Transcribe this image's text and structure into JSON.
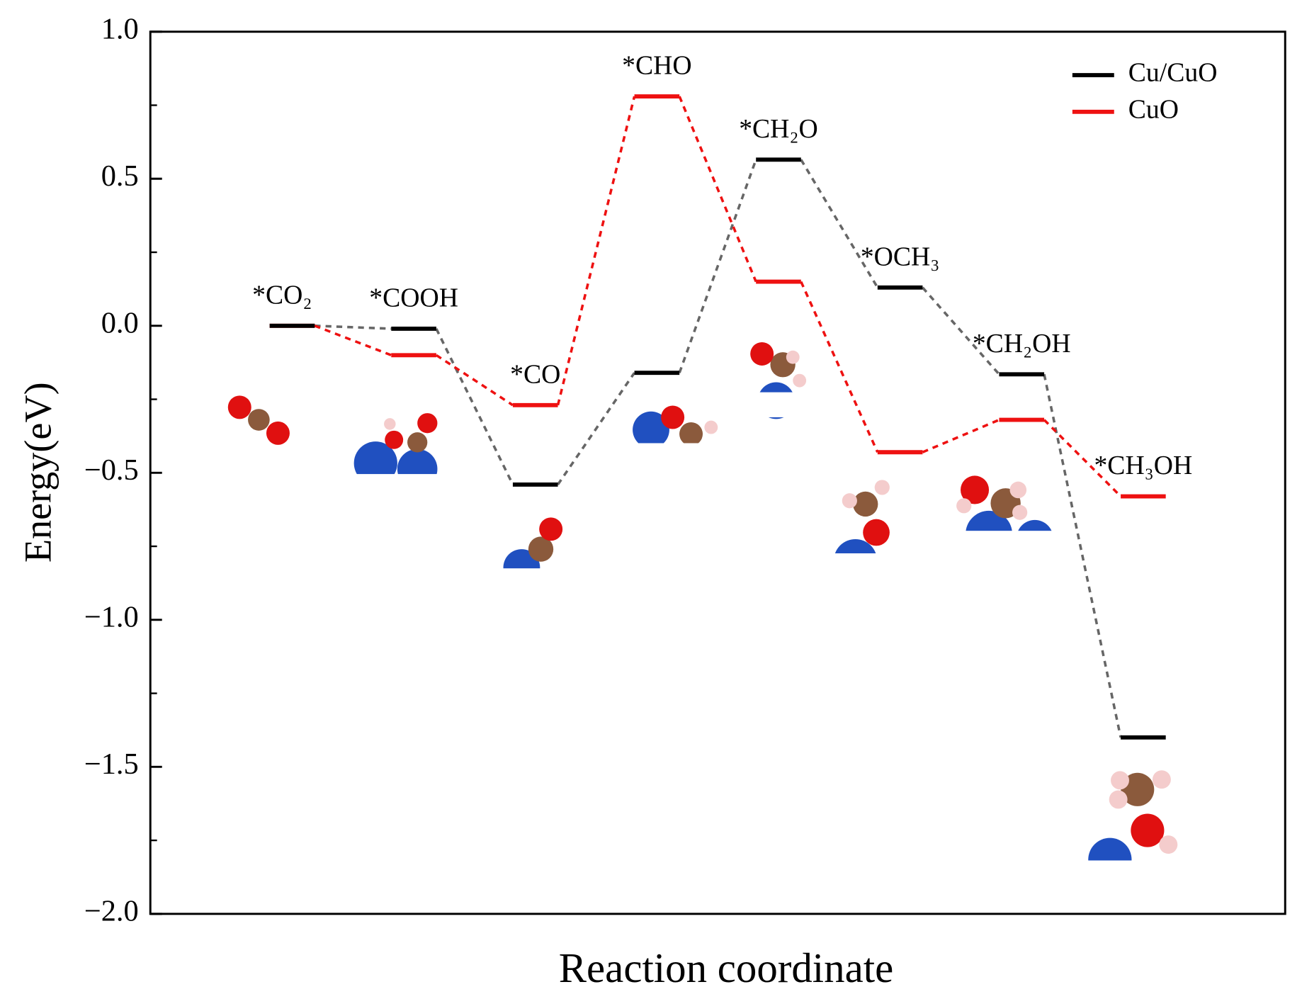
{
  "chart_data": {
    "type": "energy_profile",
    "xlabel": "Reaction coordinate",
    "ylabel": "Energy(eV)",
    "categories": [
      "*CO₂",
      "*COOH",
      "*CO",
      "*CHO",
      "*CH₂O",
      "*OCH₃",
      "*CH₂OH",
      "*CH₃OH"
    ],
    "series": [
      {
        "name": "Cu/CuO",
        "color": "#000000",
        "values": [
          0,
          -0.01,
          -0.54,
          -0.16,
          0.565,
          0.13,
          -0.165,
          -1.4
        ]
      },
      {
        "name": "CuO",
        "color": "#ee1111",
        "values": [
          0,
          -0.1,
          -0.27,
          0.78,
          0.15,
          -0.43,
          -0.32,
          -0.58
        ]
      }
    ],
    "ylim": [
      -2.0,
      1.0
    ],
    "yticks": [
      {
        "value": 1.0,
        "label": "1.0"
      },
      0.5,
      {
        "value": 0.0,
        "label": "0.0"
      },
      {
        "value": -0.5,
        "label": "−0.5"
      },
      {
        "value": -1.0,
        "label": "−1.0"
      },
      {
        "value": -1.5,
        "label": "−1.5"
      },
      {
        "value": -2.0,
        "label": "−2.0"
      }
    ],
    "yminorticks": [
      0.75,
      0.25,
      -0.25,
      -0.75,
      -1.25,
      -1.75
    ],
    "legend": "upper right"
  }
}
